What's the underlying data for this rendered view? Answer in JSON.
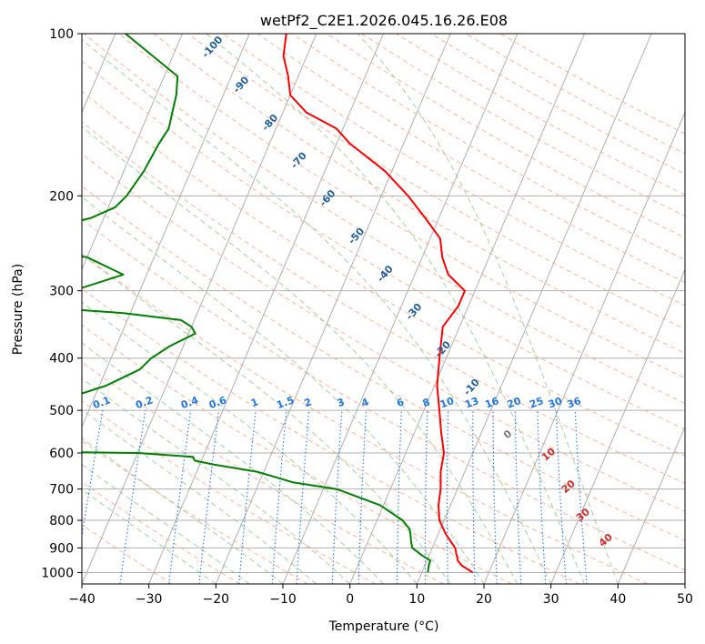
{
  "chart_data": {
    "type": "line",
    "subtype": "skew-T log-P diagram",
    "title": "wetPf2_C2E1.2026.045.16.26.E08",
    "xlabel": "Temperature (°C)",
    "ylabel": "Pressure (hPa)",
    "xlim": [
      -40,
      50
    ],
    "ylim": [
      1050,
      100
    ],
    "y_scale": "log",
    "x_ticks": [
      -40,
      -30,
      -20,
      -10,
      0,
      10,
      20,
      30,
      40,
      50
    ],
    "y_ticks": [
      100,
      200,
      300,
      400,
      500,
      600,
      700,
      800,
      900,
      1000
    ],
    "grid": true,
    "series": [
      {
        "color": "#ff0000",
        "points": [
          [
            1000,
            17.6
          ],
          [
            970,
            15.5
          ],
          [
            950,
            14.6
          ],
          [
            900,
            13.4
          ],
          [
            850,
            11.2
          ],
          [
            800,
            9.3
          ],
          [
            750,
            8.2
          ],
          [
            700,
            7.5
          ],
          [
            650,
            6.4
          ],
          [
            600,
            5.7
          ],
          [
            550,
            4.0
          ],
          [
            500,
            2.3
          ],
          [
            450,
            0.4
          ],
          [
            400,
            -1.0
          ],
          [
            350,
            -2.5
          ],
          [
            320,
            -1.5
          ],
          [
            300,
            -1.5
          ],
          [
            280,
            -5.0
          ],
          [
            260,
            -7.0
          ],
          [
            240,
            -8.5
          ],
          [
            220,
            -12.0
          ],
          [
            200,
            -16.0
          ],
          [
            180,
            -21.0
          ],
          [
            160,
            -28.0
          ],
          [
            150,
            -31.0
          ],
          [
            140,
            -36.5
          ],
          [
            130,
            -40.0
          ],
          [
            120,
            -41.5
          ],
          [
            110,
            -43.5
          ],
          [
            100,
            -44.5
          ]
        ]
      },
      {
        "color": "#008000",
        "points": [
          [
            1000,
            10.9
          ],
          [
            970,
            10.6
          ],
          [
            950,
            10.5
          ],
          [
            930,
            9.0
          ],
          [
            900,
            7.0
          ],
          [
            870,
            6.3
          ],
          [
            850,
            5.9
          ],
          [
            830,
            5.4
          ],
          [
            800,
            3.8
          ],
          [
            750,
            -0.5
          ],
          [
            700,
            -8.0
          ],
          [
            680,
            -15.0
          ],
          [
            650,
            -21.0
          ],
          [
            630,
            -28.0
          ],
          [
            620,
            -31.0
          ],
          [
            610,
            -31.5
          ],
          [
            600,
            -40.0
          ],
          [
            590,
            -90.0
          ],
          [
            515,
            -92.0
          ],
          [
            505,
            -62.0
          ],
          [
            480,
            -55.0
          ],
          [
            450,
            -49.0
          ],
          [
            420,
            -45.0
          ],
          [
            400,
            -44.0
          ],
          [
            380,
            -42.0
          ],
          [
            360,
            -39.0
          ],
          [
            350,
            -40.0
          ],
          [
            340,
            -42.0
          ],
          [
            330,
            -51.0
          ],
          [
            320,
            -67.0
          ],
          [
            310,
            -69.0
          ],
          [
            300,
            -60.0
          ],
          [
            280,
            -53.5
          ],
          [
            260,
            -60.0
          ],
          [
            250,
            -70.0
          ],
          [
            240,
            -75.0
          ],
          [
            230,
            -68.0
          ],
          [
            220,
            -62.0
          ],
          [
            210,
            -59.0
          ],
          [
            200,
            -58.0
          ],
          [
            180,
            -57.0
          ],
          [
            160,
            -56.5
          ],
          [
            150,
            -56.0
          ],
          [
            140,
            -56.5
          ],
          [
            130,
            -57.0
          ],
          [
            120,
            -58.0
          ],
          [
            110,
            -63.0
          ],
          [
            100,
            -68.5
          ]
        ]
      }
    ],
    "reference_lines": {
      "dry_adiabats": {
        "color": "#ff9f80",
        "style": "dashed",
        "labels": [
          "10",
          "20",
          "30",
          "40"
        ],
        "label_color": "#d62728"
      },
      "moist_adiabats": {
        "color": "#7fbf7f",
        "style": "dashed",
        "labels": [
          "0"
        ],
        "label_color": "#777777"
      },
      "mixing_ratio": {
        "color": "#1f77e0",
        "style": "dotted",
        "labels": [
          "0.1",
          "0.2",
          "0.4",
          "0.6",
          "1",
          "1.5",
          "2",
          "3",
          "4",
          "6",
          "8",
          "10",
          "13",
          "16",
          "20",
          "25",
          "30",
          "36"
        ]
      },
      "isotherms": {
        "color": "#999999",
        "style": "solid"
      },
      "sigma_levels": {
        "color": "#1f5f9f",
        "labels": [
          "-100",
          "-90",
          "-80",
          "-70",
          "-60",
          "-50",
          "-40",
          "-30",
          "-20",
          "-10"
        ]
      }
    }
  }
}
